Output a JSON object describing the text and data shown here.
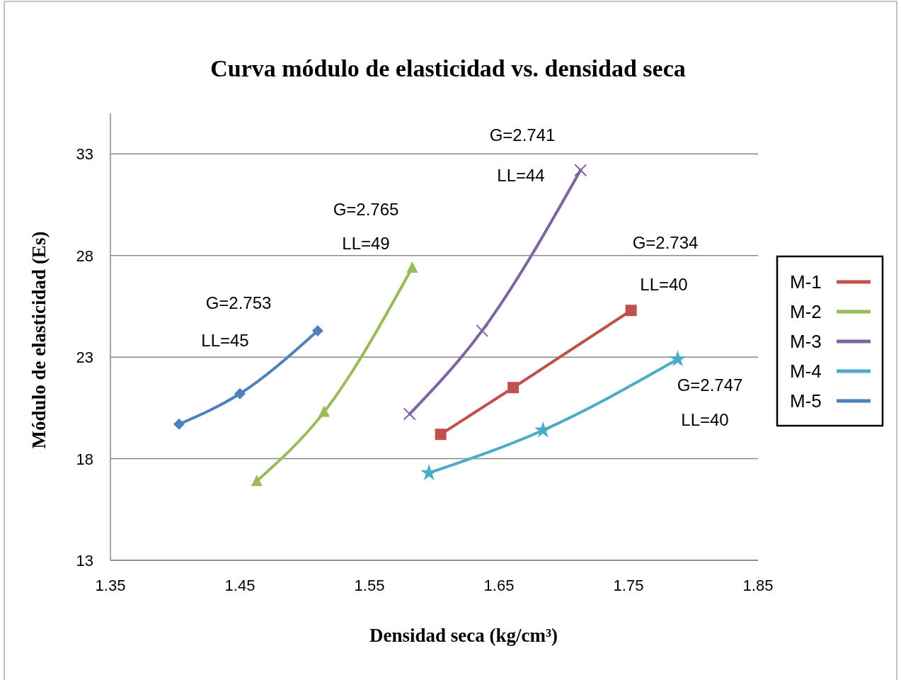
{
  "chart_data": {
    "type": "line",
    "title": "Curva módulo de elasticidad vs. densidad seca",
    "xlabel": "Densidad seca (kg/cm³)",
    "ylabel": "Módulo de elasticidad (Es)",
    "xlim": [
      1.35,
      1.85
    ],
    "xticks": [
      1.35,
      1.45,
      1.55,
      1.65,
      1.75,
      1.85
    ],
    "ylim": [
      13,
      35
    ],
    "yticks": [
      13,
      18,
      23,
      28,
      33
    ],
    "grid": "y",
    "legend": "right",
    "series": [
      {
        "name": "M-1",
        "color": "#c0504d",
        "marker": "square",
        "x": [
          1.605,
          1.661,
          1.752
        ],
        "values": [
          19.2,
          21.5,
          25.3
        ]
      },
      {
        "name": "M-2",
        "color": "#9bbb59",
        "marker": "triangle",
        "x": [
          1.463,
          1.515,
          1.583
        ],
        "values": [
          16.9,
          20.3,
          27.4
        ]
      },
      {
        "name": "M-3",
        "color": "#8064a2",
        "marker": "cross",
        "x": [
          1.581,
          1.637,
          1.713
        ],
        "values": [
          20.2,
          24.3,
          32.2
        ]
      },
      {
        "name": "M-4",
        "color": "#4bacc6",
        "marker": "star",
        "x": [
          1.596,
          1.684,
          1.788
        ],
        "values": [
          17.3,
          19.4,
          22.9
        ]
      },
      {
        "name": "M-5",
        "color": "#4f81bd",
        "marker": "diamond",
        "x": [
          1.403,
          1.45,
          1.51
        ],
        "values": [
          19.7,
          21.2,
          24.3
        ]
      }
    ],
    "annotations": [
      "G=2.753",
      "LL=45",
      "G=2.765",
      "LL=49",
      "G=2.741",
      "LL=44",
      "G=2.734",
      "LL=40",
      "G=2.747",
      "LL=40"
    ]
  }
}
